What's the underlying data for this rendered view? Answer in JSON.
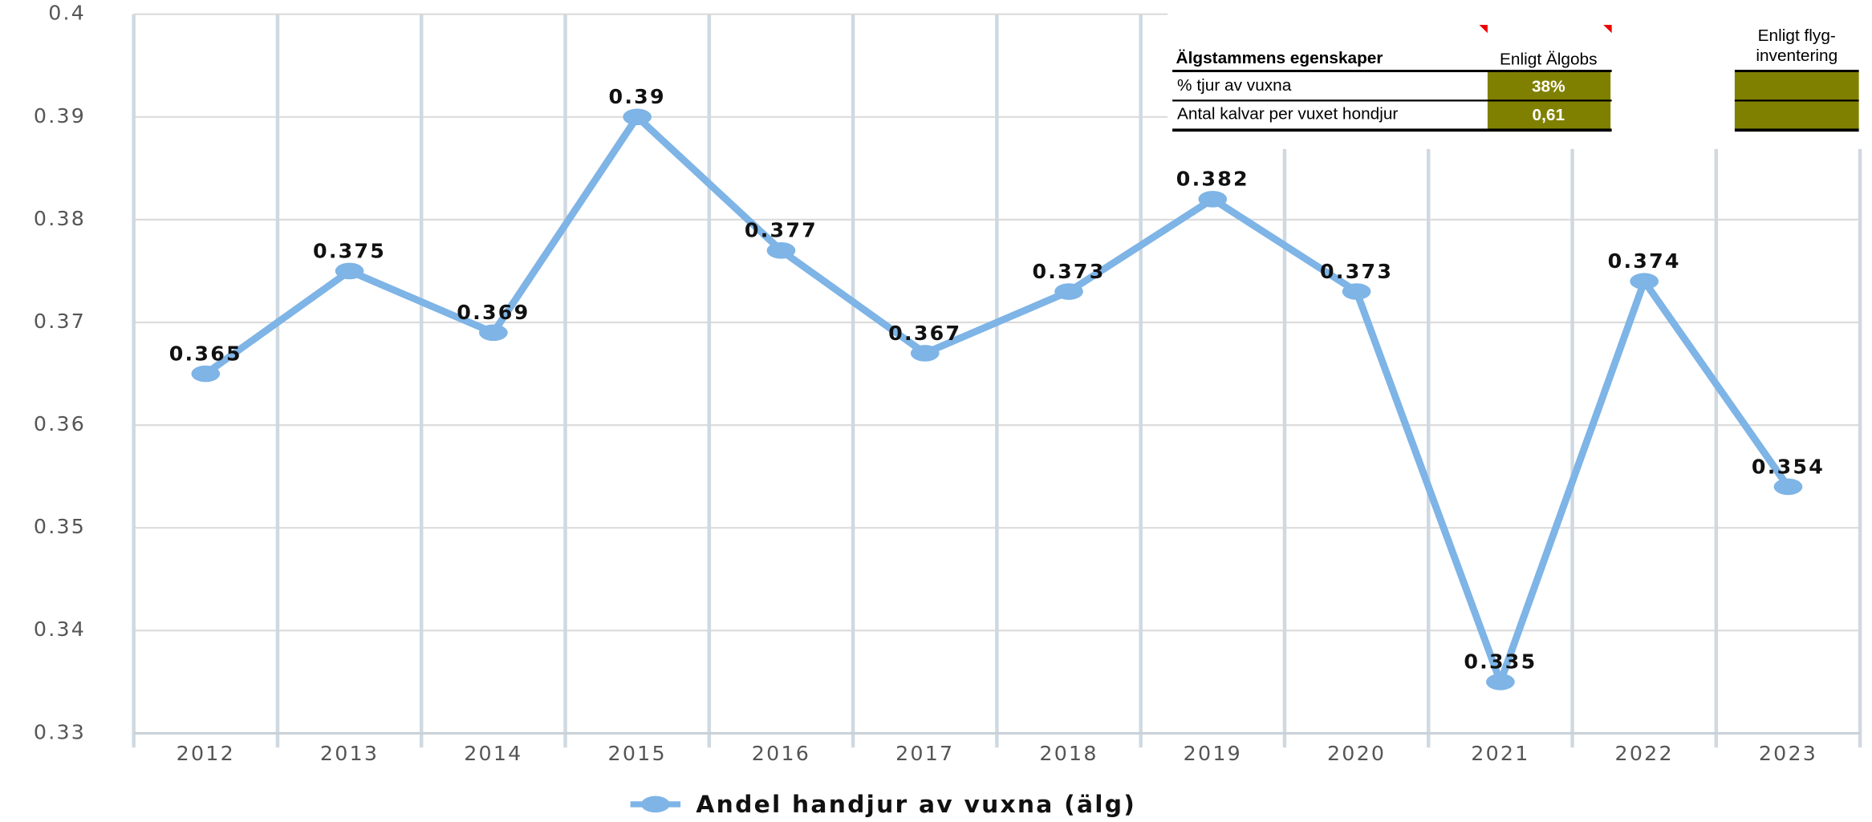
{
  "chart_data": {
    "type": "line",
    "categories": [
      "2012",
      "2013",
      "2014",
      "2015",
      "2016",
      "2017",
      "2018",
      "2019",
      "2020",
      "2021",
      "2022",
      "2023"
    ],
    "series": [
      {
        "name": "Andel handjur av vuxna (älg)",
        "color": "#7eb4e6",
        "values": [
          0.365,
          0.375,
          0.369,
          0.39,
          0.377,
          0.367,
          0.373,
          0.382,
          0.373,
          0.335,
          0.374,
          0.354
        ]
      }
    ],
    "ylim": [
      0.33,
      0.4
    ],
    "yticks": [
      0.33,
      0.34,
      0.35,
      0.36,
      0.37,
      0.38,
      0.39,
      0.4
    ],
    "grid": true,
    "legend": "bottom"
  },
  "table": {
    "headers": [
      "Älgstammens egenskaper",
      "Enligt Älgobs",
      [
        "Enligt flyg-",
        "inventering"
      ]
    ],
    "rows": [
      [
        "% tjur av vuxna",
        "38%"
      ],
      [
        "Antal kalvar per vuxet hondjur",
        "0,61"
      ]
    ]
  }
}
